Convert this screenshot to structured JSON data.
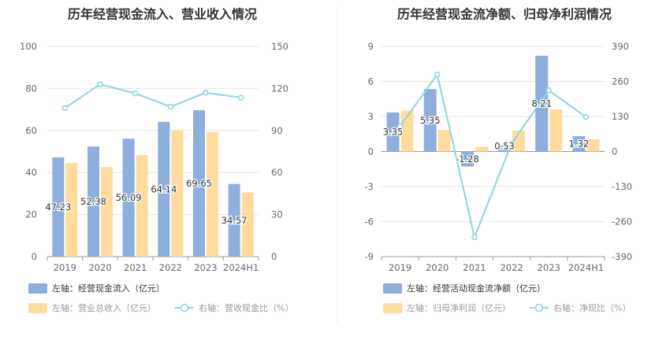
{
  "colors": {
    "bar_blue": "#8eafdc",
    "bar_orange": "#ffdb9e",
    "line_cyan": "#8cd6de",
    "grid": "#e6e6e6",
    "axis": "#999999",
    "text": "#666666",
    "legend_active": "#333333",
    "legend_inactive": "#999999"
  },
  "chart_data": [
    {
      "type": "bar",
      "title": "历年经营现金流入、营业收入情况",
      "categories": [
        "2019",
        "2020",
        "2021",
        "2022",
        "2023",
        "2024H1"
      ],
      "y_left": {
        "min": 0,
        "max": 100,
        "ticks": [
          "0",
          "20",
          "40",
          "60",
          "80",
          "100"
        ]
      },
      "y_right": {
        "min": 0,
        "max": 150,
        "ticks": [
          "0",
          "30",
          "60",
          "90",
          "120",
          "150"
        ]
      },
      "grid": true,
      "legend_position": "bottom-left",
      "series": [
        {
          "name": "左轴：经营现金流入（亿元）",
          "kind": "bar",
          "axis": "left",
          "color": "#8eafdc",
          "values": [
            47.23,
            52.38,
            56.09,
            64.14,
            69.65,
            34.57
          ],
          "labels": [
            "47.23",
            "52.38",
            "56.09",
            "64.14",
            "69.65",
            "34.57"
          ]
        },
        {
          "name": "左轴：营业总收入（亿元）",
          "kind": "bar",
          "axis": "left",
          "color": "#ffdb9e",
          "values": [
            44.6,
            42.6,
            48.3,
            60.2,
            59.2,
            30.5
          ]
        },
        {
          "name": "右轴：营收现金比（%）",
          "kind": "line",
          "axis": "right",
          "color": "#8cd6de",
          "values": [
            106,
            123,
            116.5,
            107,
            117,
            113.5
          ]
        }
      ]
    },
    {
      "type": "bar",
      "title": "历年经营现金流净额、归母净利润情况",
      "categories": [
        "2019",
        "2020",
        "2021",
        "2022",
        "2023",
        "2024H1"
      ],
      "y_left": {
        "min": -9,
        "max": 9,
        "ticks": [
          "-9",
          "-6",
          "-3",
          "0",
          "3",
          "6",
          "9"
        ]
      },
      "y_right": {
        "min": -390,
        "max": 390,
        "ticks": [
          "-390",
          "-260",
          "-130",
          "0",
          "130",
          "260",
          "390"
        ]
      },
      "grid": true,
      "legend_position": "bottom-left",
      "series": [
        {
          "name": "左轴：经营活动现金流净额（亿元）",
          "kind": "bar",
          "axis": "left",
          "color": "#8eafdc",
          "values": [
            3.35,
            5.35,
            -1.28,
            0.53,
            8.21,
            1.32
          ],
          "labels": [
            "3.35",
            "5.35",
            "-1.28",
            "0.53",
            "8.21",
            "1.32"
          ]
        },
        {
          "name": "左轴：归母净利润（亿元）",
          "kind": "bar",
          "axis": "left",
          "color": "#ffdb9e",
          "values": [
            3.5,
            1.85,
            0.4,
            1.8,
            3.6,
            1.05
          ]
        },
        {
          "name": "右轴：净现比（%）",
          "kind": "line",
          "axis": "right",
          "color": "#8cd6de",
          "values": [
            93,
            286,
            -318,
            30,
            227,
            128
          ]
        }
      ]
    }
  ]
}
